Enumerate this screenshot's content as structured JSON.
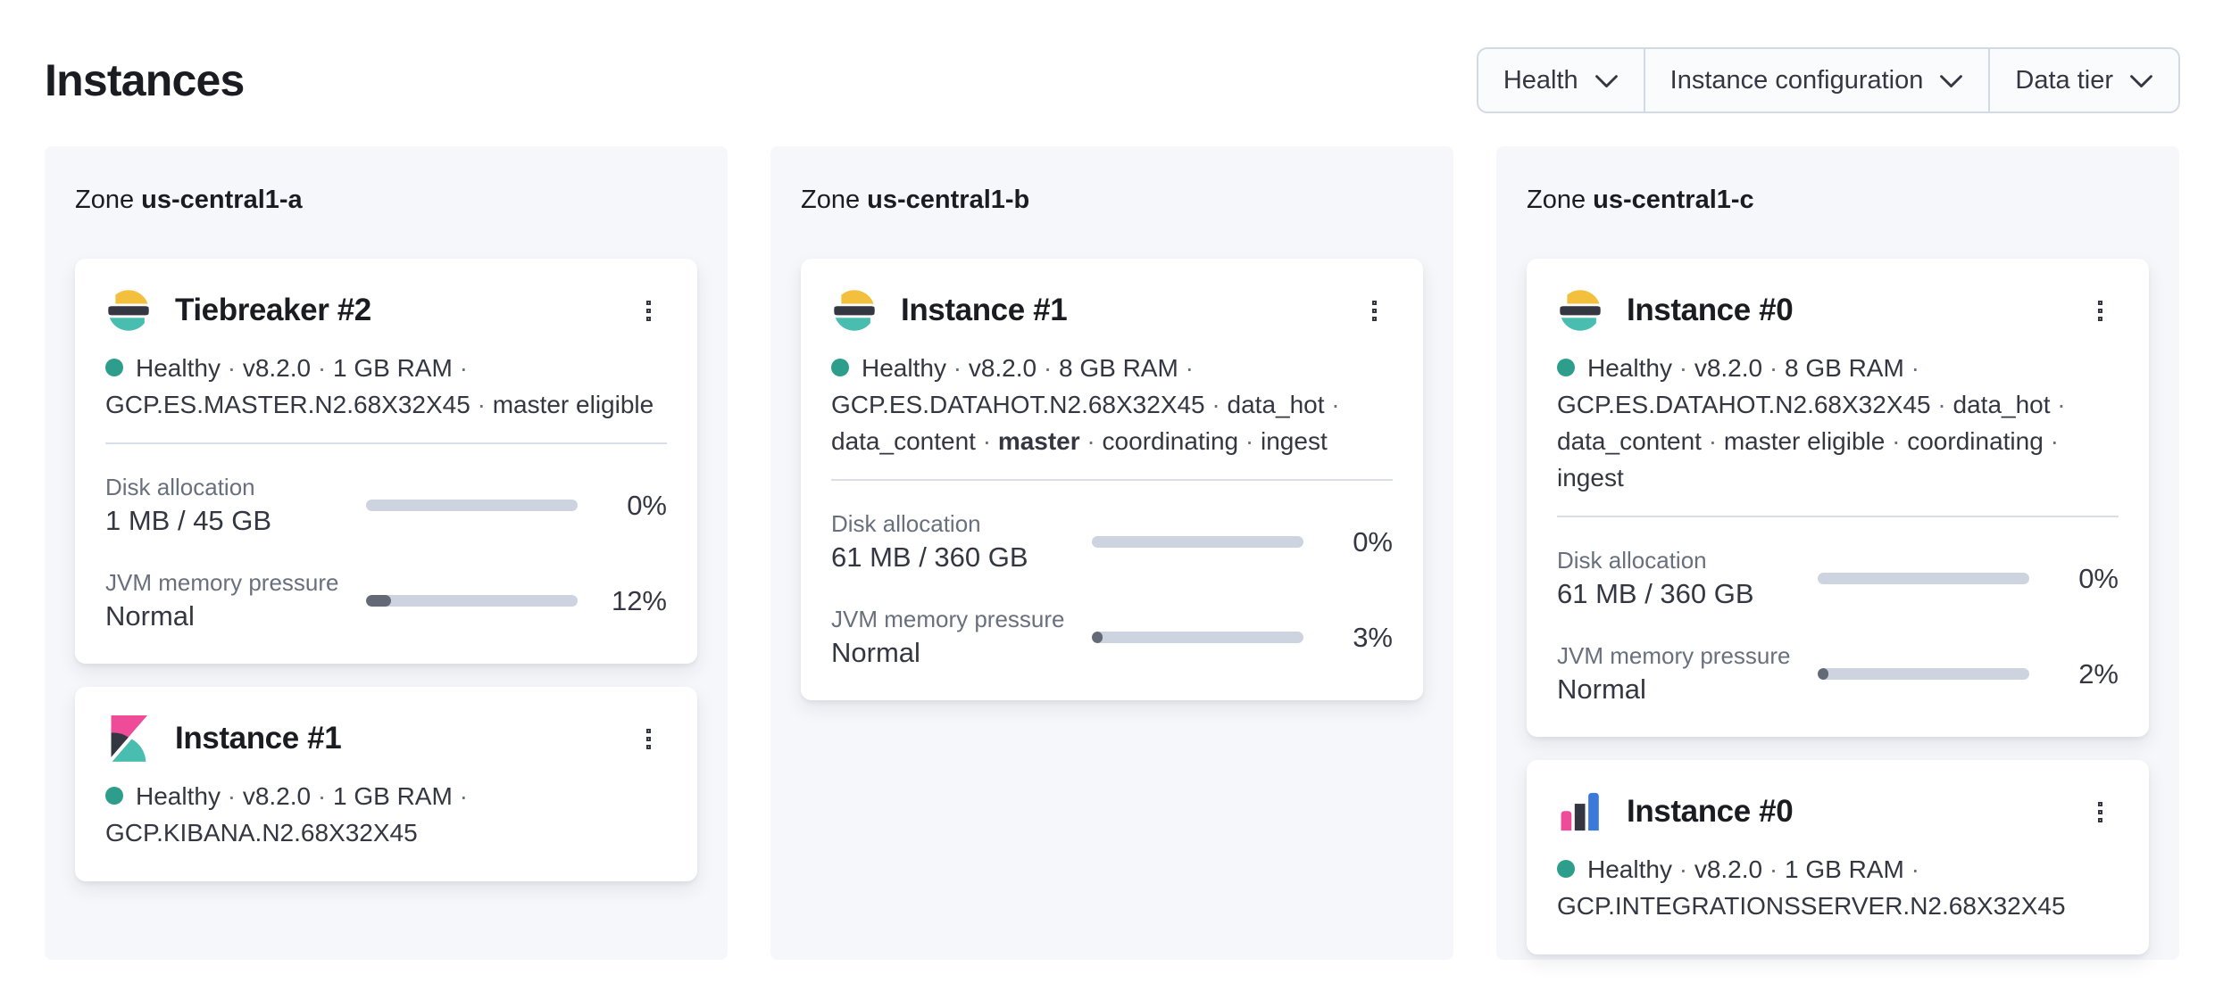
{
  "page": {
    "title": "Instances"
  },
  "filters": {
    "items": [
      {
        "label": "Health"
      },
      {
        "label": "Instance configuration"
      },
      {
        "label": "Data tier"
      }
    ]
  },
  "separator": "·",
  "colors": {
    "healthy_dot": "#2e9e8c",
    "progress_track": "#cdd3df",
    "progress_fill": "#636a76",
    "panel_bg": "#f5f7fa",
    "elastic_yellow": "#f2c03c",
    "elastic_teal": "#49bdb0",
    "elastic_dark": "#343741",
    "kibana_pink": "#ee4c98",
    "integrations_blue": "#3b7ad9"
  },
  "zones": [
    {
      "label": "Zone",
      "name": "us-central1-a",
      "instances": [
        {
          "logo": "elasticsearch-logo",
          "title": "Tiebreaker #2",
          "health": "Healthy",
          "meta": [
            {
              "text": "v8.2.0"
            },
            {
              "text": "1 GB RAM"
            },
            {
              "text": "GCP.ES.MASTER.N2.68X32X45"
            },
            {
              "text": "master eligible"
            }
          ],
          "metrics": [
            {
              "label": "Disk allocation",
              "value": "1 MB / 45 GB",
              "percent": "0%",
              "fill": 0
            },
            {
              "label": "JVM memory pressure",
              "value": "Normal",
              "percent": "12%",
              "fill": 12
            }
          ]
        },
        {
          "logo": "kibana-logo",
          "title": "Instance #1",
          "health": "Healthy",
          "meta": [
            {
              "text": "v8.2.0"
            },
            {
              "text": "1 GB RAM"
            },
            {
              "text": "GCP.KIBANA.N2.68X32X45"
            }
          ]
        }
      ]
    },
    {
      "label": "Zone",
      "name": "us-central1-b",
      "instances": [
        {
          "logo": "elasticsearch-logo",
          "title": "Instance #1",
          "health": "Healthy",
          "meta": [
            {
              "text": "v8.2.0"
            },
            {
              "text": "8 GB RAM"
            },
            {
              "text": "GCP.ES.DATAHOT.N2.68X32X45"
            },
            {
              "text": "data_hot"
            },
            {
              "text": "data_content"
            },
            {
              "text": "master",
              "bold": true
            },
            {
              "text": "coordinating"
            },
            {
              "text": "ingest"
            }
          ],
          "metrics": [
            {
              "label": "Disk allocation",
              "value": "61 MB / 360 GB",
              "percent": "0%",
              "fill": 0
            },
            {
              "label": "JVM memory pressure",
              "value": "Normal",
              "percent": "3%",
              "fill": 3
            }
          ]
        }
      ]
    },
    {
      "label": "Zone",
      "name": "us-central1-c",
      "instances": [
        {
          "logo": "elasticsearch-logo",
          "title": "Instance #0",
          "health": "Healthy",
          "meta": [
            {
              "text": "v8.2.0"
            },
            {
              "text": "8 GB RAM"
            },
            {
              "text": "GCP.ES.DATAHOT.N2.68X32X45"
            },
            {
              "text": "data_hot"
            },
            {
              "text": "data_content"
            },
            {
              "text": "master eligible"
            },
            {
              "text": "coordinating"
            },
            {
              "text": "ingest"
            }
          ],
          "metrics": [
            {
              "label": "Disk allocation",
              "value": "61 MB / 360 GB",
              "percent": "0%",
              "fill": 0
            },
            {
              "label": "JVM memory pressure",
              "value": "Normal",
              "percent": "2%",
              "fill": 2
            }
          ]
        },
        {
          "logo": "integrations-server-logo",
          "title": "Instance #0",
          "health": "Healthy",
          "meta": [
            {
              "text": "v8.2.0"
            },
            {
              "text": "1 GB RAM"
            },
            {
              "text": "GCP.INTEGRATIONSSERVER.N2.68X32X45"
            }
          ]
        }
      ]
    }
  ]
}
